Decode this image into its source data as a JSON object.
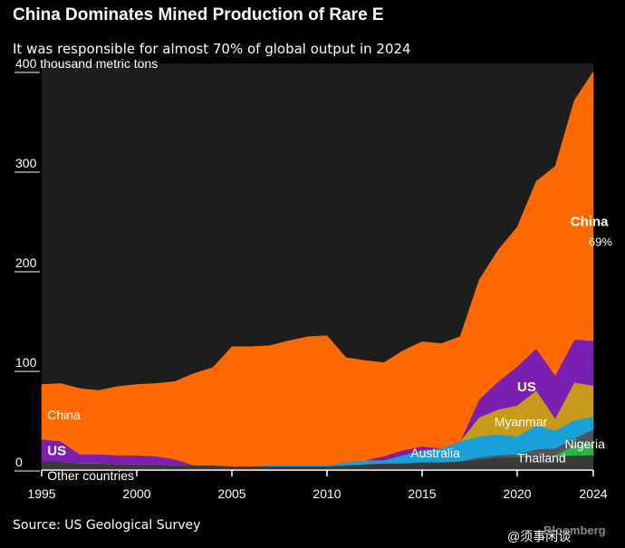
{
  "header": {
    "title": "China Dominates Mined Production of Rare E",
    "subtitle": "It was responsible for almost 70% of global output in 2024"
  },
  "footer": {
    "source": "Source: US Geological Survey",
    "brand": "Bloomberg",
    "watermark": "@须事闲谈"
  },
  "colors": {
    "background": "#000000",
    "plot_background": "#1d1d1d",
    "china": "#ff6a00",
    "us": "#7a1fb0",
    "myanmar": "#c89a1a",
    "australia": "#1aa0d8",
    "thailand": "#555555",
    "nigeria": "#2bb34a",
    "other": "#3a3a3a"
  },
  "chart_data": {
    "type": "area",
    "stacked": true,
    "ylabel": "thousand metric tons",
    "ylim": [
      0,
      400
    ],
    "yticks": [
      0,
      100,
      200,
      300,
      400
    ],
    "ytick_labels": [
      "0",
      "100",
      "200",
      "300",
      "400 thousand metric tons"
    ],
    "xlim": [
      1995,
      2024
    ],
    "xticks": [
      1995,
      2000,
      2005,
      2010,
      2015,
      2020,
      2024
    ],
    "x": [
      1995,
      1996,
      1997,
      1998,
      1999,
      2000,
      2001,
      2002,
      2003,
      2004,
      2005,
      2006,
      2007,
      2008,
      2009,
      2010,
      2011,
      2012,
      2013,
      2014,
      2015,
      2016,
      2017,
      2018,
      2019,
      2020,
      2021,
      2022,
      2023,
      2024
    ],
    "series": [
      {
        "name": "Other countries",
        "label": "Other countries",
        "color": "#3a3a3a",
        "values": [
          8,
          8,
          6,
          6,
          5,
          5,
          5,
          4,
          4,
          4,
          3,
          3,
          3,
          3,
          3,
          3,
          4,
          5,
          6,
          6,
          7,
          7,
          8,
          10,
          12,
          12,
          12,
          13,
          14,
          14
        ]
      },
      {
        "name": "Nigeria",
        "label": "Nigeria",
        "color": "#2bb34a",
        "values": [
          0,
          0,
          0,
          0,
          0,
          0,
          0,
          0,
          0,
          0,
          0,
          0,
          0,
          0,
          0,
          0,
          0,
          0,
          0,
          0,
          0,
          0,
          0,
          0,
          0,
          0,
          0,
          1,
          10,
          13
        ]
      },
      {
        "name": "Thailand",
        "label": "Thailand",
        "color": "#555555",
        "values": [
          0,
          0,
          0,
          0,
          0,
          0,
          0,
          0,
          0,
          0,
          0,
          0,
          0,
          0,
          0,
          0,
          0,
          0,
          0,
          0,
          0,
          0,
          0,
          2,
          2,
          3,
          8,
          7,
          7,
          13
        ]
      },
      {
        "name": "Australia",
        "label": "Australia",
        "color": "#1aa0d8",
        "values": [
          0,
          0,
          0,
          0,
          0,
          0,
          0,
          0,
          0,
          0,
          0,
          0,
          1,
          1,
          1,
          1,
          3,
          4,
          3,
          8,
          12,
          14,
          20,
          21,
          21,
          18,
          24,
          18,
          18,
          13
        ]
      },
      {
        "name": "Myanmar",
        "label": "Myanmar",
        "color": "#c89a1a",
        "values": [
          0,
          0,
          0,
          0,
          0,
          0,
          0,
          0,
          0,
          0,
          0,
          0,
          0,
          0,
          0,
          0,
          0,
          0,
          0,
          0,
          0,
          0,
          0,
          19,
          25,
          31,
          35,
          12,
          38,
          31
        ]
      },
      {
        "name": "US",
        "label": "US",
        "color": "#7a1fb0",
        "values": [
          22,
          20,
          9,
          9,
          9,
          9,
          8,
          6,
          0,
          0,
          0,
          0,
          0,
          0,
          0,
          0,
          0,
          0,
          4,
          5,
          4,
          0,
          0,
          18,
          28,
          39,
          42,
          43,
          43,
          45
        ]
      },
      {
        "name": "China",
        "label": "China",
        "percent_label": "69%",
        "color": "#ff6a00",
        "values": [
          55,
          58,
          66,
          64,
          69,
          71,
          73,
          78,
          92,
          98,
          120,
          120,
          120,
          125,
          129,
          130,
          105,
          100,
          94,
          100,
          105,
          105,
          105,
          120,
          132,
          140,
          168,
          210,
          240,
          270
        ]
      }
    ]
  }
}
